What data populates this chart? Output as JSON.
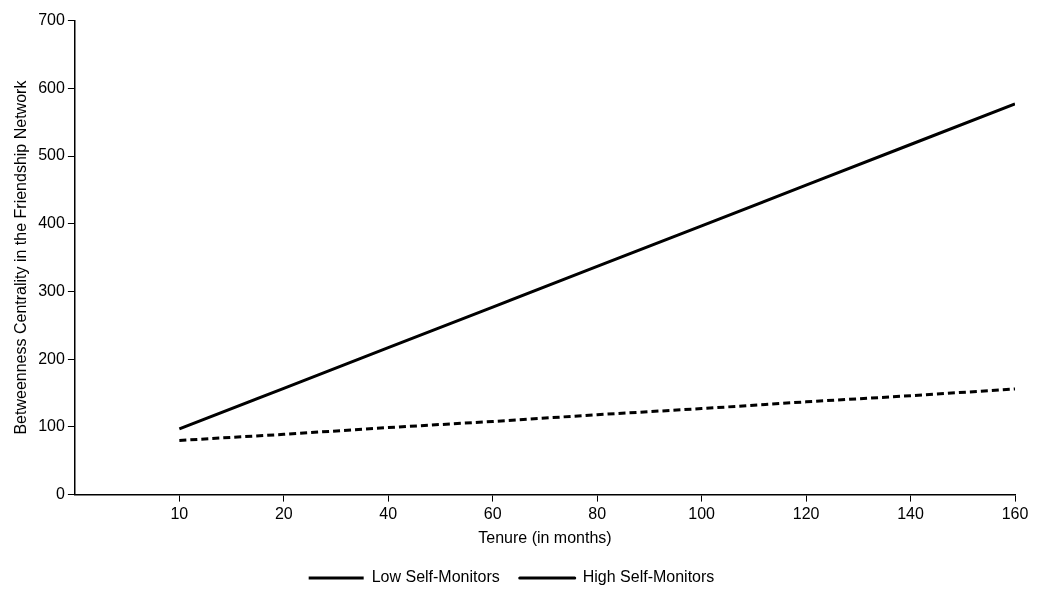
{
  "chart_data": {
    "type": "line",
    "xlabel": "Tenure (in months)",
    "ylabel": "Betweenness Centrality in the Friendship Network",
    "categories": [
      "10",
      "20",
      "40",
      "60",
      "80",
      "100",
      "120",
      "140",
      "160"
    ],
    "series": [
      {
        "name": "Low Self-Monitors",
        "color": "#000000",
        "line_style": "dashed",
        "values": [
          80,
          89,
          99,
          108,
          118,
          127,
          137,
          146,
          156
        ]
      },
      {
        "name": "High Self-Monitors",
        "color": "#000000",
        "line_style": "solid",
        "values": [
          97,
          157,
          217,
          277,
          337,
          397,
          457,
          517,
          577
        ]
      }
    ],
    "ylim": [
      0,
      700
    ],
    "yticks": [
      0,
      100,
      200,
      300,
      400,
      500,
      600,
      700
    ],
    "grid": false,
    "legend": "bottom",
    "marker": "none"
  }
}
